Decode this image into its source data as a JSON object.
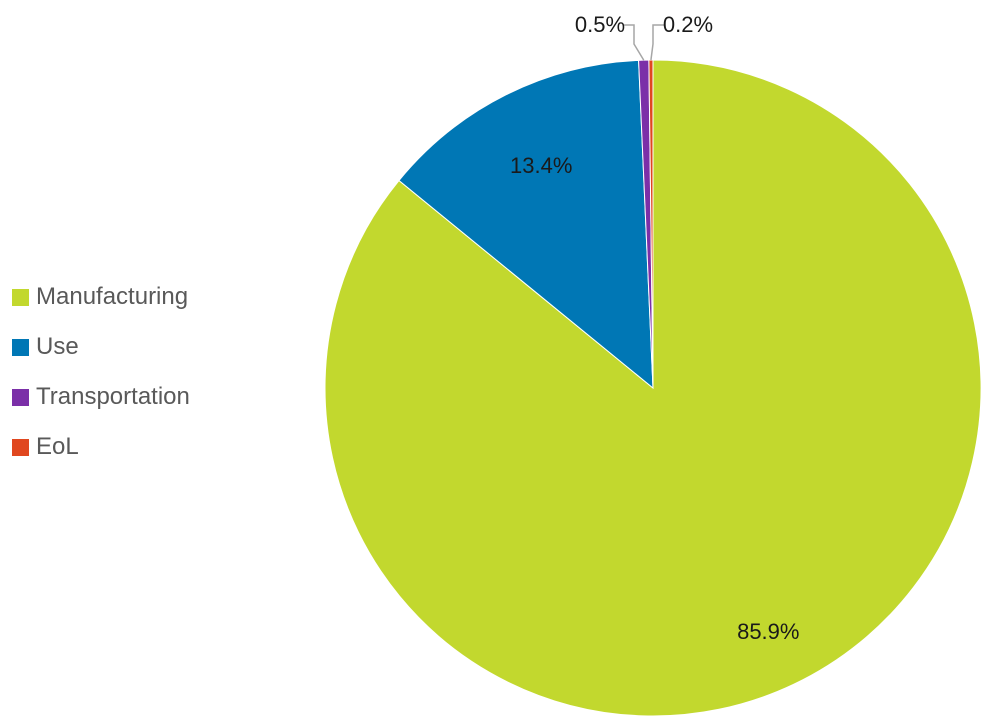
{
  "chart_data": {
    "type": "pie",
    "title": "",
    "legend_position": "left",
    "series": [
      {
        "values": [
          85.9,
          13.4,
          0.5,
          0.2
        ],
        "categories": [
          "Manufacturing",
          "Use",
          "Transportation",
          "EoL"
        ],
        "colors": [
          "#C2D82E",
          "#0077B5",
          "#7B2FA8",
          "#E0471F"
        ],
        "labels": [
          "85.9%",
          "13.4%",
          "0.5%",
          "0.2%"
        ]
      }
    ]
  }
}
